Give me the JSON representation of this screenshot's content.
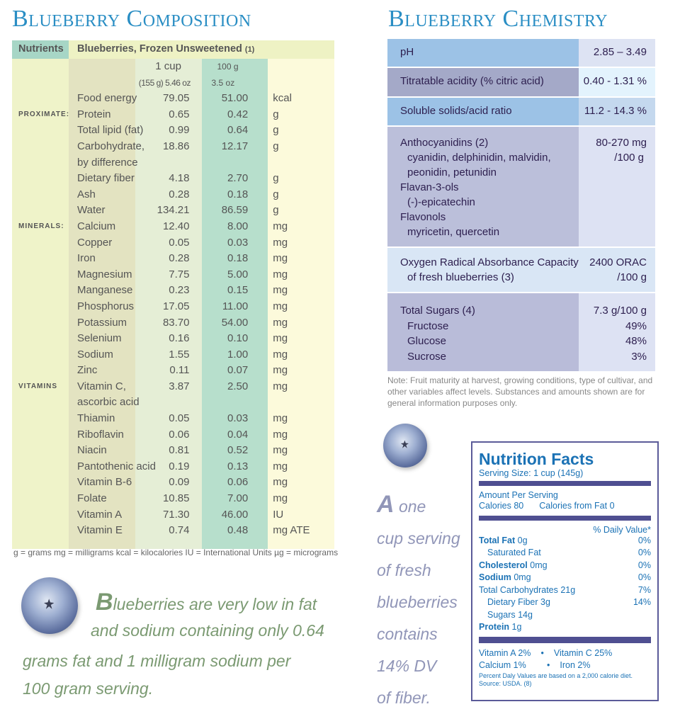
{
  "composition": {
    "title": "Blueberry Composition",
    "header": {
      "nutrients": "Nutrients",
      "food": "Blueberries, Frozen Unsweetened",
      "ref": "(1)"
    },
    "col_headers": {
      "cup": "1 cup",
      "cup_sub": "(155 g) 5.46 oz",
      "g100": "100 g",
      "g100_sub": "3.5 oz"
    },
    "rows": [
      {
        "section": "",
        "name": "Food energy",
        "cup": "79.05",
        "g100": "51.00",
        "unit": "kcal"
      },
      {
        "section": "PROXIMATE:",
        "name": "Protein",
        "cup": "0.65",
        "g100": "0.42",
        "unit": "g"
      },
      {
        "section": "",
        "name": "Total lipid (fat)",
        "cup": "0.99",
        "g100": "0.64",
        "unit": "g"
      },
      {
        "section": "",
        "name": "Carbohydrate,",
        "cup": "18.86",
        "g100": "12.17",
        "unit": "g"
      },
      {
        "section": "",
        "name": "by difference",
        "cup": "",
        "g100": "",
        "unit": ""
      },
      {
        "section": "",
        "name": "Dietary fiber",
        "cup": "4.18",
        "g100": "2.70",
        "unit": "g"
      },
      {
        "section": "",
        "name": "Ash",
        "cup": "0.28",
        "g100": "0.18",
        "unit": "g"
      },
      {
        "section": "",
        "name": "Water",
        "cup": "134.21",
        "g100": "86.59",
        "unit": "g"
      },
      {
        "section": "MINERALS:",
        "name": "Calcium",
        "cup": "12.40",
        "g100": "8.00",
        "unit": "mg"
      },
      {
        "section": "",
        "name": "Copper",
        "cup": "0.05",
        "g100": "0.03",
        "unit": "mg"
      },
      {
        "section": "",
        "name": "Iron",
        "cup": "0.28",
        "g100": "0.18",
        "unit": "mg"
      },
      {
        "section": "",
        "name": "Magnesium",
        "cup": "7.75",
        "g100": "5.00",
        "unit": "mg"
      },
      {
        "section": "",
        "name": "Manganese",
        "cup": "0.23",
        "g100": "0.15",
        "unit": "mg"
      },
      {
        "section": "",
        "name": "Phosphorus",
        "cup": "17.05",
        "g100": "11.00",
        "unit": "mg"
      },
      {
        "section": "",
        "name": "Potassium",
        "cup": "83.70",
        "g100": "54.00",
        "unit": "mg"
      },
      {
        "section": "",
        "name": "Selenium",
        "cup": "0.16",
        "g100": "0.10",
        "unit": "mg"
      },
      {
        "section": "",
        "name": "Sodium",
        "cup": "1.55",
        "g100": "1.00",
        "unit": "mg"
      },
      {
        "section": "",
        "name": "Zinc",
        "cup": "0.11",
        "g100": "0.07",
        "unit": "mg"
      },
      {
        "section": "VITAMINS",
        "name": "Vitamin C,",
        "cup": "3.87",
        "g100": "2.50",
        "unit": "mg"
      },
      {
        "section": "",
        "name": "ascorbic acid",
        "cup": "",
        "g100": "",
        "unit": ""
      },
      {
        "section": "",
        "name": "Thiamin",
        "cup": "0.05",
        "g100": "0.03",
        "unit": "mg"
      },
      {
        "section": "",
        "name": "Riboflavin",
        "cup": "0.06",
        "g100": "0.04",
        "unit": "mg"
      },
      {
        "section": "",
        "name": "Niacin",
        "cup": "0.81",
        "g100": "0.52",
        "unit": "mg"
      },
      {
        "section": "",
        "name": "Pantothenic acid",
        "cup": "0.19",
        "g100": "0.13",
        "unit": "mg"
      },
      {
        "section": "",
        "name": "Vitamin B-6",
        "cup": "0.09",
        "g100": "0.06",
        "unit": "mg"
      },
      {
        "section": "",
        "name": "Folate",
        "cup": "10.85",
        "g100": "7.00",
        "unit": "mg"
      },
      {
        "section": "",
        "name": "Vitamin A",
        "cup": "71.30",
        "g100": "46.00",
        "unit": "IU"
      },
      {
        "section": "",
        "name": "Vitamin E",
        "cup": "0.74",
        "g100": "0.48",
        "unit": "mg ATE"
      }
    ],
    "footnote": "g = grams  mg = milligrams  kcal = kilocalories IU = International Units µg = micrograms"
  },
  "callout_left": {
    "initial": "B",
    "line1": "lueberries are very low in fat",
    "line2": "and sodium containing only 0.64",
    "line3": "grams fat and 1 milligram sodium per",
    "line4": "100 gram serving."
  },
  "chemistry": {
    "title": "Blueberry Chemistry",
    "rows": [
      {
        "label": "pH",
        "value": "2.85 – 3.49"
      },
      {
        "label": "Titratable acidity (% citric acid)",
        "value": "0.40 - 1.31 %"
      },
      {
        "label": "Soluble solids/acid ratio",
        "value": "11.2 - 14.3 %"
      }
    ],
    "antho": {
      "label": "Anthocyanidins (2)",
      "sub1": "cyanidin, delphinidin, malvidin,",
      "sub2": "peonidin, petunidin",
      "flavan": "Flavan-3-ols",
      "flavan_sub": "(-)-epicatechin",
      "flavonols": "Flavonols",
      "flavonols_sub": "myricetin, quercetin",
      "value1": "80-270 mg",
      "value2": "/100 g"
    },
    "orac": {
      "label": "Oxygen Radical Absorbance Capacity",
      "sub": "of fresh blueberries (3)",
      "value1": "2400 ORAC",
      "value2": "/100 g"
    },
    "sugars": {
      "label": "Total Sugars (4)",
      "value": "7.3 g/100 g",
      "items": [
        {
          "name": "Fructose",
          "pct": "49%"
        },
        {
          "name": "Glucose",
          "pct": "48%"
        },
        {
          "name": "Sucrose",
          "pct": "3%"
        }
      ]
    },
    "note": "Note: Fruit maturity at harvest, growing conditions, type of cultivar, and other variables affect levels.  Substances and amounts shown are for general information purposes only."
  },
  "callout_right": {
    "initial": "A",
    "lines": [
      " one",
      "cup serving",
      "of fresh",
      "blueberries",
      "contains",
      "14% DV",
      "of fiber."
    ]
  },
  "nutrition_facts": {
    "title": "Nutrition Facts",
    "serving": "Serving Size: 1 cup (145g)",
    "amount": "Amount Per Serving",
    "calories": "Calories 80",
    "calories_fat": "Calories  from Fat 0",
    "dv_header": "% Daily Value*",
    "total_fat": {
      "label": "Total Fat",
      "amt": " 0g",
      "dv": "0%"
    },
    "sat_fat": {
      "label": "Saturated Fat",
      "dv": "0%"
    },
    "cholesterol": {
      "label": "Cholesterol",
      "amt": " 0mg",
      "dv": "0%"
    },
    "sodium": {
      "label": "Sodium",
      "amt": " 0mg",
      "dv": "0%"
    },
    "carbs": {
      "label": "Total Carbohydrates 21g",
      "dv": "7%"
    },
    "fiber": {
      "label": "Dietary Fiber 3g",
      "dv": "14%"
    },
    "sugars": "Sugars 14g",
    "protein": {
      "label": "Protein",
      "amt": " 1g"
    },
    "vit_a": "Vitamin A 2%",
    "vit_c": "Vitamin C 25%",
    "calcium": "Calcium 1%",
    "iron": "Iron 2%",
    "bullet": "•",
    "footnote1": "Percent Daly Values are based on a 2,000 calorie diet.",
    "footnote2": "Source: USDA. (8)"
  },
  "colors": {
    "title": "#2a8ec4",
    "nf_blue": "#1b72b5",
    "nf_bar": "#4f4f91"
  }
}
